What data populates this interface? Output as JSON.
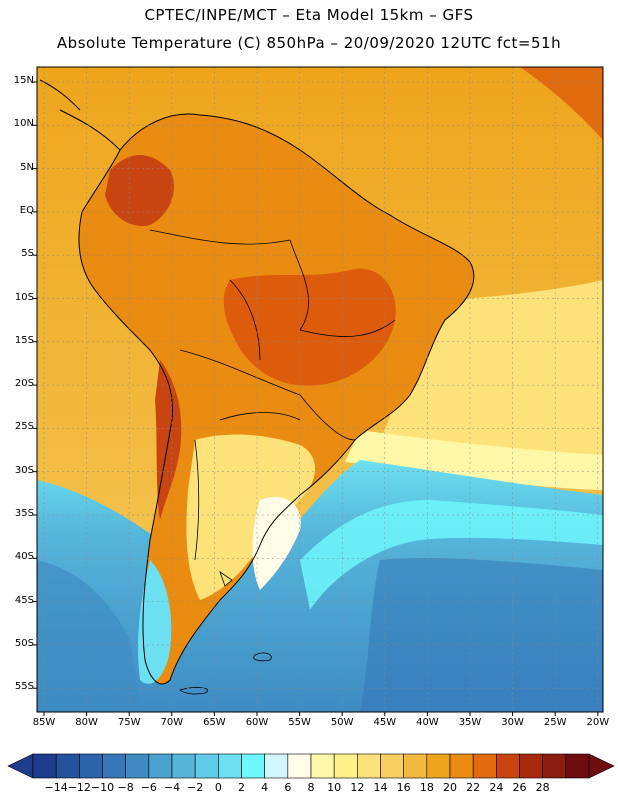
{
  "header": {
    "title_line1": "CPTEC/INPE/MCT –  Eta Model 15km – GFS",
    "title_line2": "Absolute Temperature (C) 850hPa – 20/09/2020 12UTC fct=51h"
  },
  "map": {
    "lat_labels": [
      "15N",
      "10N",
      "5N",
      "EQ",
      "5S",
      "10S",
      "15S",
      "20S",
      "25S",
      "30S",
      "35S",
      "40S",
      "45S",
      "50S",
      "55S"
    ],
    "lon_labels": [
      "85W",
      "80W",
      "75W",
      "70W",
      "65W",
      "60W",
      "55W",
      "50W",
      "45W",
      "40W",
      "35W",
      "30W",
      "25W",
      "20W"
    ]
  },
  "colorbar": {
    "labels": [
      "-14",
      "-12",
      "-10",
      "-8",
      "-6",
      "-4",
      "-2",
      "0",
      "2",
      "4",
      "6",
      "8",
      "10",
      "12",
      "14",
      "16",
      "18",
      "20",
      "22",
      "24",
      "26",
      "28"
    ],
    "colors": [
      "#1e3c8c",
      "#24529c",
      "#2a64ab",
      "#3577b8",
      "#3f8bc4",
      "#4aa0cf",
      "#55b5da",
      "#5fcbe6",
      "#6ce0f0",
      "#6ff7fc",
      "#d2f6fb",
      "#fffbe6",
      "#fff7a8",
      "#fff08a",
      "#fde27a",
      "#f8cf5e",
      "#f2b93e",
      "#eea51c",
      "#ea8c12",
      "#e06a0c",
      "#c84410",
      "#a82a0e",
      "#8a1c10",
      "#6e0c10"
    ]
  },
  "palette": {
    "ocean_cold": "#6fdcec",
    "ocean_warm": "#f2b42c",
    "land_hot": "#dc5c0c"
  }
}
